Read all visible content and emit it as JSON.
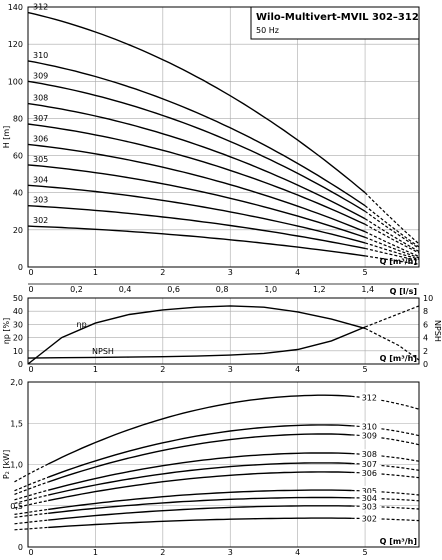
{
  "title": "Wilo-Multivert-MVIL 302–312",
  "subtitle": "50 Hz",
  "chart_data": [
    {
      "type": "line",
      "panel": "head",
      "ylabel": "H [m]",
      "xlabel": "Q [m³/h]",
      "xlabel2": "Q [l/s]",
      "xlim": [
        0,
        5.8
      ],
      "ylim": [
        0,
        140
      ],
      "xticks": [
        0,
        1,
        2,
        3,
        4,
        5
      ],
      "yticks": [
        0,
        20,
        40,
        60,
        80,
        100,
        120,
        140
      ],
      "x2ticks": [
        0,
        0.2,
        0.4,
        0.6,
        0.8,
        1.0,
        1.2,
        1.4
      ],
      "x2tick_labels": [
        "0",
        "0,2",
        "0,4",
        "0,6",
        "0,8",
        "1,0",
        "1,2",
        "1,4"
      ],
      "grid": true,
      "series": [
        {
          "name": "312",
          "shutoff": 137,
          "end": 40
        },
        {
          "name": "310",
          "shutoff": 111,
          "end": 33
        },
        {
          "name": "309",
          "shutoff": 100,
          "end": 30
        },
        {
          "name": "308",
          "shutoff": 88,
          "end": 26
        },
        {
          "name": "307",
          "shutoff": 77,
          "end": 23
        },
        {
          "name": "306",
          "shutoff": 66,
          "end": 19
        },
        {
          "name": "305",
          "shutoff": 55,
          "end": 16
        },
        {
          "name": "304",
          "shutoff": 44,
          "end": 13
        },
        {
          "name": "303",
          "shutoff": 33,
          "end": 10
        },
        {
          "name": "302",
          "shutoff": 22,
          "end": 6
        }
      ]
    },
    {
      "type": "line",
      "panel": "efficiency",
      "ylabel": "ηp [%]",
      "ylabel_right": "NPSH",
      "xlabel": "Q [m³/h]",
      "xlim": [
        0,
        5.8
      ],
      "ylim": [
        0,
        50
      ],
      "ylim_right": [
        0,
        10
      ],
      "xticks": [
        0,
        1,
        2,
        3,
        4,
        5
      ],
      "yticks": [
        0,
        10,
        20,
        30,
        40,
        50
      ],
      "yticks_right": [
        0,
        2,
        4,
        6,
        8,
        10
      ],
      "grid": true,
      "series": [
        {
          "name": "ηp",
          "x": [
            0,
            0.5,
            1,
            1.5,
            2,
            2.5,
            3,
            3.5,
            4,
            4.5,
            5,
            5.5,
            5.8
          ],
          "y": [
            0,
            20,
            31,
            37.5,
            41,
            43,
            44,
            43,
            39.5,
            34,
            27,
            14,
            3
          ]
        },
        {
          "name": "NPSH",
          "axis": "right",
          "x": [
            0,
            0.5,
            1,
            1.5,
            2,
            2.5,
            3,
            3.5,
            4,
            4.5,
            5,
            5.5,
            5.8
          ],
          "y": [
            0.9,
            0.95,
            1.0,
            1.05,
            1.1,
            1.2,
            1.35,
            1.6,
            2.2,
            3.5,
            5.6,
            7.6,
            8.8
          ]
        }
      ]
    },
    {
      "type": "line",
      "panel": "power",
      "ylabel": "P₂ [kW]",
      "xlabel": "Q [m³/h]",
      "xlim": [
        0,
        5.8
      ],
      "ylim": [
        0,
        2.0
      ],
      "xticks": [
        0,
        1,
        2,
        3,
        4,
        5
      ],
      "yticks": [
        0,
        0.5,
        1.0,
        1.5,
        2.0
      ],
      "ytick_labels": [
        "0",
        "0,5",
        "1,0",
        "1,5",
        "2,0"
      ],
      "grid": true,
      "series": [
        {
          "name": "312",
          "p0": 0.88,
          "pmax": 1.84,
          "pend": 1.67
        },
        {
          "name": "310",
          "p0": 0.75,
          "pmax": 1.48,
          "pend": 1.35
        },
        {
          "name": "309",
          "p0": 0.7,
          "pmax": 1.37,
          "pend": 1.24
        },
        {
          "name": "308",
          "p0": 0.62,
          "pmax": 1.14,
          "pend": 1.04
        },
        {
          "name": "307",
          "p0": 0.57,
          "pmax": 1.02,
          "pend": 0.93
        },
        {
          "name": "306",
          "p0": 0.51,
          "pmax": 0.91,
          "pend": 0.84
        },
        {
          "name": "305",
          "p0": 0.42,
          "pmax": 0.69,
          "pend": 0.63
        },
        {
          "name": "304",
          "p0": 0.38,
          "pmax": 0.6,
          "pend": 0.56
        },
        {
          "name": "303",
          "p0": 0.3,
          "pmax": 0.5,
          "pend": 0.46
        },
        {
          "name": "302",
          "p0": 0.22,
          "pmax": 0.35,
          "pend": 0.32
        }
      ]
    }
  ]
}
